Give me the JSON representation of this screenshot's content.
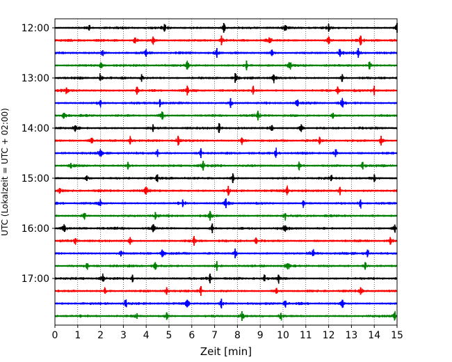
{
  "chart_data": {
    "type": "line",
    "title": "",
    "xlabel": "Zeit  [min]",
    "ylabel": "UTC (Lokalzeit = UTC + 02:00)",
    "xlim": [
      0,
      15
    ],
    "x_ticks": [
      0,
      1,
      2,
      3,
      4,
      5,
      6,
      7,
      8,
      9,
      10,
      11,
      12,
      13,
      14,
      15
    ],
    "x_tick_labels": [
      "0",
      "1",
      "2",
      "3",
      "4",
      "5",
      "6",
      "7",
      "8",
      "9",
      "10",
      "11",
      "12",
      "13",
      "14",
      "15"
    ],
    "x_grid": "dotted vertical gridlines at each minute",
    "y_tick_labels": [
      "12:00",
      "13:00",
      "14:00",
      "15:00",
      "16:00",
      "17:00"
    ],
    "row_interval_minutes": 15,
    "trace_colors": [
      "#000000",
      "#ff0000",
      "#0000ff",
      "#008000"
    ],
    "traces": [
      {
        "start": "12:00",
        "color": "#000000",
        "events": [
          1.5,
          4.8,
          7.4,
          10.1,
          12.0,
          15.0
        ]
      },
      {
        "start": "12:15",
        "color": "#ff0000",
        "events": [
          3.5,
          4.3,
          7.3,
          9.4,
          12.0,
          13.4
        ]
      },
      {
        "start": "12:30",
        "color": "#0000ff",
        "events": [
          2.1,
          4.0,
          7.1,
          9.5,
          12.5,
          13.3
        ]
      },
      {
        "start": "12:45",
        "color": "#008000",
        "events": [
          2.0,
          5.8,
          8.4,
          10.3,
          13.8
        ]
      },
      {
        "start": "13:00",
        "color": "#000000",
        "events": [
          2.0,
          3.8,
          7.9,
          9.6,
          12.6
        ]
      },
      {
        "start": "13:15",
        "color": "#ff0000",
        "events": [
          0.5,
          3.6,
          5.8,
          8.7,
          12.4,
          14.0
        ]
      },
      {
        "start": "13:30",
        "color": "#0000ff",
        "events": [
          2.0,
          4.6,
          7.7,
          10.6,
          12.6
        ]
      },
      {
        "start": "13:45",
        "color": "#008000",
        "events": [
          0.4,
          4.7,
          8.9,
          12.2
        ]
      },
      {
        "start": "14:00",
        "color": "#000000",
        "events": [
          0.9,
          4.3,
          7.2,
          9.5,
          10.8
        ]
      },
      {
        "start": "14:15",
        "color": "#ff0000",
        "events": [
          1.6,
          3.3,
          5.4,
          8.2,
          11.6,
          14.3
        ]
      },
      {
        "start": "14:30",
        "color": "#0000ff",
        "events": [
          2.0,
          4.5,
          6.4,
          9.7,
          12.3
        ]
      },
      {
        "start": "14:45",
        "color": "#008000",
        "events": [
          0.7,
          3.2,
          6.5,
          10.7,
          13.5
        ]
      },
      {
        "start": "15:00",
        "color": "#000000",
        "events": [
          1.4,
          4.5,
          7.8,
          12.1,
          14.0
        ]
      },
      {
        "start": "15:15",
        "color": "#ff0000",
        "events": [
          0.2,
          4.0,
          7.6,
          10.2,
          12.5
        ]
      },
      {
        "start": "15:30",
        "color": "#0000ff",
        "events": [
          2.0,
          5.6,
          7.5,
          10.9,
          13.4
        ]
      },
      {
        "start": "15:45",
        "color": "#008000",
        "events": [
          1.3,
          4.4,
          6.8,
          10.1
        ]
      },
      {
        "start": "16:00",
        "color": "#000000",
        "events": [
          0.4,
          4.3,
          6.9,
          10.1,
          14.9
        ]
      },
      {
        "start": "16:15",
        "color": "#ff0000",
        "events": [
          0.9,
          3.3,
          6.1,
          8.8,
          14.7
        ]
      },
      {
        "start": "16:30",
        "color": "#0000ff",
        "events": [
          2.9,
          4.7,
          7.9,
          11.3,
          13.7
        ]
      },
      {
        "start": "16:45",
        "color": "#008000",
        "events": [
          1.4,
          4.4,
          7.1,
          10.2,
          13.6
        ]
      },
      {
        "start": "17:00",
        "color": "#000000",
        "events": [
          2.1,
          3.4,
          6.8,
          9.2,
          9.8
        ]
      },
      {
        "start": "17:15",
        "color": "#ff0000",
        "events": [
          2.2,
          4.9,
          6.4,
          9.7,
          13.4
        ]
      },
      {
        "start": "17:30",
        "color": "#0000ff",
        "events": [
          3.1,
          5.8,
          7.3,
          10.1,
          12.6
        ]
      },
      {
        "start": "17:45",
        "color": "#008000",
        "events": [
          3.6,
          4.9,
          8.2,
          9.9,
          14.9
        ]
      }
    ]
  }
}
